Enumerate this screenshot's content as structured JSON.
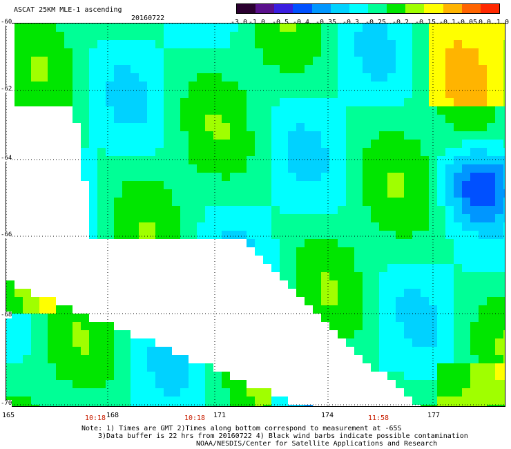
{
  "header": {
    "title": "ASCAT 25KM MLE-1 ascending",
    "date": "20160722"
  },
  "colorbar": {
    "tick_labels": [
      "-3.0",
      "-1.0",
      "-0.5",
      "-0.4",
      "-0.35",
      "-0.3",
      "-0.25",
      "-0.2",
      "-0.15",
      "-0.1",
      "-0.05",
      "0.0",
      "1.0"
    ],
    "colors": [
      "#2b0030",
      "#5a108c",
      "#3a1ee0",
      "#0050ff",
      "#0096ff",
      "#00d2ff",
      "#00ffff",
      "#00ff96",
      "#00e600",
      "#a0ff00",
      "#ffff00",
      "#ffb400",
      "#ff6400",
      "#ff2800"
    ]
  },
  "map": {
    "lat_labels": [
      "-60",
      "-62",
      "-64",
      "-66",
      "-68",
      "-70"
    ],
    "lon_labels": [
      "165",
      "168",
      "171",
      "174",
      "177"
    ],
    "pass_times": [
      "10:18",
      "10:18",
      "11:58"
    ],
    "lon_range": [
      165,
      178.5
    ],
    "lat_range": [
      -70,
      -60
    ]
  },
  "notes": {
    "line1": "Note: 1) Times are GMT 2)Times along bottom correspond to measurement at -65S",
    "line2": "3)Data buffer is 22 hrs from 20160722 4) Black wind barbs indicate possible contamination",
    "line3": "NOAA/NESDIS/Center for Satellite Applications and Research"
  }
}
